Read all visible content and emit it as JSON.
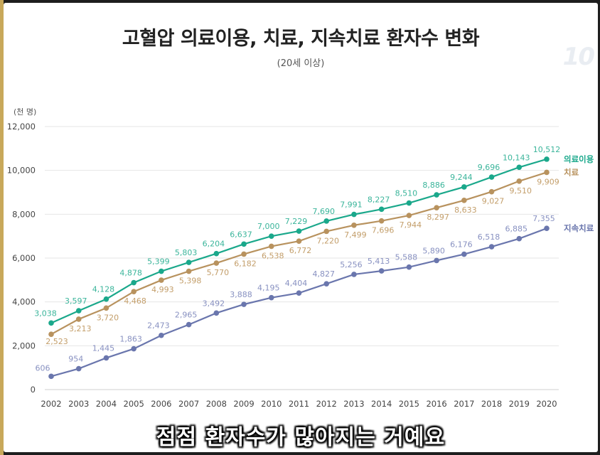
{
  "header": {
    "title": "고혈압 의료이용, 치료, 지속치료 환자수 변화",
    "subtitle": "(20세 이상)",
    "watermark": "10"
  },
  "caption": "점점 환자수가 많아지는 거예요",
  "chart_data": {
    "type": "line",
    "ylabel": "(천 명)",
    "ylim": [
      0,
      12000
    ],
    "yticks": [
      "12,000",
      "10,000",
      "8,000",
      "6,000",
      "4,000",
      "2,000",
      "0"
    ],
    "grid": true,
    "x": [
      "2002",
      "2003",
      "2004",
      "2005",
      "2006",
      "2007",
      "2008",
      "2009",
      "2010",
      "2011",
      "2012",
      "2013",
      "2014",
      "2015",
      "2016",
      "2017",
      "2018",
      "2019",
      "2020"
    ],
    "series": [
      {
        "name": "의료이용",
        "color": "#1aa88b",
        "labelColor": "#3bb59b",
        "values": [
          3038,
          3597,
          4128,
          4878,
          5399,
          5803,
          6204,
          6637,
          7000,
          7229,
          7690,
          7991,
          8227,
          8510,
          8886,
          9244,
          9696,
          10143,
          10512
        ],
        "labels": [
          "3,038",
          "3,597",
          "4,128",
          "4,878",
          "5,399",
          "5,803",
          "6,204",
          "6,637",
          "7,000",
          "7,229",
          "7,690",
          "7,991",
          "8,227",
          "8,510",
          "8,886",
          "9,244",
          "9,696",
          "10,143",
          "10,512"
        ]
      },
      {
        "name": "치료",
        "color": "#b8925e",
        "labelColor": "#c39e6a",
        "values": [
          2523,
          3213,
          3720,
          4468,
          4993,
          5398,
          5770,
          6182,
          6538,
          6772,
          7220,
          7499,
          7696,
          7944,
          8297,
          8633,
          9027,
          9510,
          9909
        ],
        "labels": [
          "2,523",
          "3,213",
          "3,720",
          "4,468",
          "4,993",
          "5,398",
          "5,770",
          "6,182",
          "6,538",
          "6,772",
          "7,220",
          "7,499",
          "7,696",
          "7,944",
          "8,297",
          "8,633",
          "9,027",
          "9,510",
          "9,909"
        ]
      },
      {
        "name": "지속치료",
        "color": "#6a76ad",
        "labelColor": "#8891c1",
        "values": [
          606,
          954,
          1445,
          1863,
          2473,
          2965,
          3492,
          3888,
          4195,
          4404,
          4827,
          5256,
          5413,
          5588,
          5890,
          6176,
          6518,
          6885,
          7355
        ],
        "labels": [
          "606",
          "954",
          "1,445",
          "1,863",
          "2,473",
          "2,965",
          "3,492",
          "3,888",
          "4,195",
          "4,404",
          "4,827",
          "5,256",
          "5,413",
          "5,588",
          "5,890",
          "6,176",
          "6,518",
          "6,885",
          "7,355"
        ]
      }
    ]
  }
}
